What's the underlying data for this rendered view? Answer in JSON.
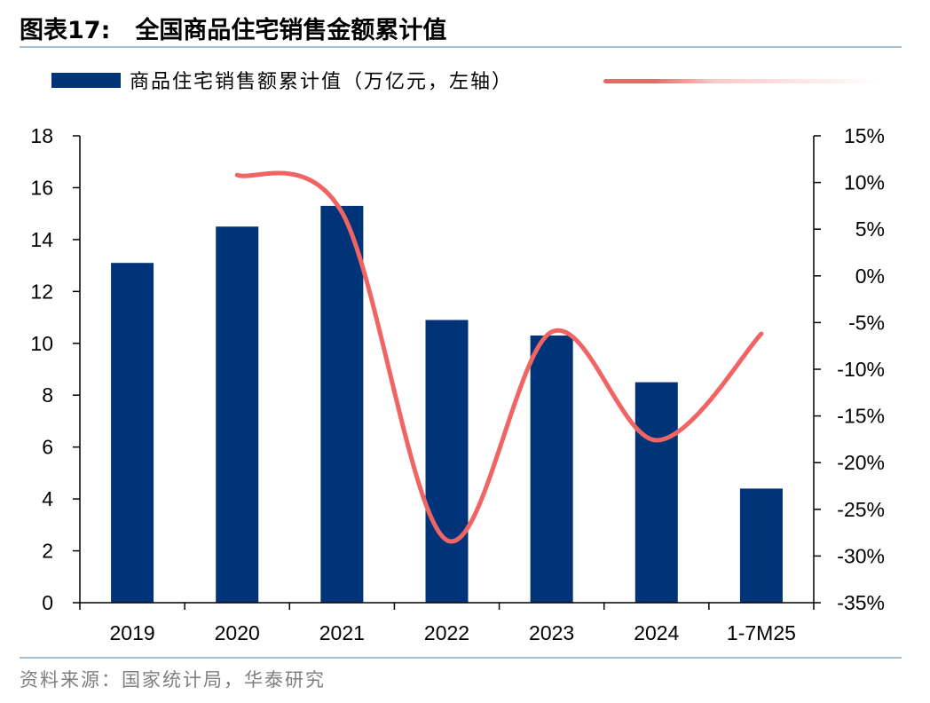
{
  "figure": {
    "number": "图表17:",
    "title": "全国商品住宅销售金额累计值",
    "source": "资料来源：国家统计局，华泰研究"
  },
  "legend": {
    "bar_label": "商品住宅销售额累计值（万亿元，左轴）",
    "line_label": ""
  },
  "colors": {
    "bar": "#003478",
    "line": "#f06464",
    "rule": "#a9bccd"
  },
  "chart_data": {
    "type": "bar",
    "categories": [
      "2019",
      "2020",
      "2021",
      "2022",
      "2023",
      "2024",
      "1-7M25"
    ],
    "series": [
      {
        "name": "商品住宅销售额累计值（万亿元，左轴）",
        "type": "bar",
        "axis": "left",
        "values": [
          13.1,
          14.5,
          15.3,
          10.9,
          10.3,
          8.5,
          4.4
        ]
      },
      {
        "type": "line",
        "axis": "right",
        "values": [
          null,
          10.8,
          6.8,
          -28.3,
          -6.0,
          -17.6,
          -6.2
        ]
      }
    ],
    "y_left": {
      "min": 0,
      "max": 18,
      "ticks": [
        "0",
        "2",
        "4",
        "6",
        "8",
        "10",
        "12",
        "14",
        "16",
        "18"
      ]
    },
    "y_right": {
      "min": -35,
      "max": 15,
      "ticks": [
        "-35%",
        "-30%",
        "-25%",
        "-20%",
        "-15%",
        "-10%",
        "-5%",
        "0%",
        "5%",
        "10%",
        "15%"
      ]
    },
    "grid": false,
    "legend_position": "top"
  }
}
